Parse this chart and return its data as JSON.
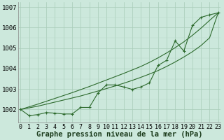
{
  "x": [
    0,
    1,
    2,
    3,
    4,
    5,
    6,
    7,
    8,
    9,
    10,
    11,
    12,
    13,
    14,
    15,
    16,
    17,
    18,
    19,
    20,
    21,
    22,
    23
  ],
  "y_data": [
    1002.0,
    1001.7,
    1001.75,
    1001.85,
    1001.82,
    1001.78,
    1001.78,
    1002.1,
    1002.1,
    1002.8,
    1003.2,
    1003.2,
    1003.1,
    1002.98,
    1003.1,
    1003.3,
    1004.15,
    1004.4,
    1005.35,
    1004.85,
    1006.1,
    1006.5,
    1006.62,
    1006.72
  ],
  "y_trend1": [
    1002.0,
    1002.08,
    1002.16,
    1002.26,
    1002.36,
    1002.46,
    1002.56,
    1002.66,
    1002.78,
    1002.9,
    1003.02,
    1003.15,
    1003.28,
    1003.42,
    1003.57,
    1003.73,
    1003.9,
    1004.1,
    1004.32,
    1004.56,
    1004.82,
    1005.12,
    1005.5,
    1006.72
  ],
  "y_trend2": [
    1002.0,
    1002.13,
    1002.26,
    1002.4,
    1002.54,
    1002.68,
    1002.82,
    1002.97,
    1003.12,
    1003.28,
    1003.44,
    1003.6,
    1003.76,
    1003.93,
    1004.1,
    1004.3,
    1004.52,
    1004.76,
    1005.02,
    1005.3,
    1005.62,
    1005.97,
    1006.35,
    1006.72
  ],
  "background_color": "#cce8dc",
  "grid_color_major": "#a8ccb8",
  "grid_color_minor": "#b8d8c8",
  "line_color": "#2d6a2d",
  "xlabel": "Graphe pression niveau de la mer (hPa)",
  "ylabel_ticks": [
    1002,
    1003,
    1004,
    1005,
    1006,
    1007
  ],
  "ylim": [
    1001.35,
    1007.25
  ],
  "xlim": [
    -0.3,
    23.3
  ],
  "xlabel_fontsize": 7.5,
  "tick_fontsize": 6.5
}
